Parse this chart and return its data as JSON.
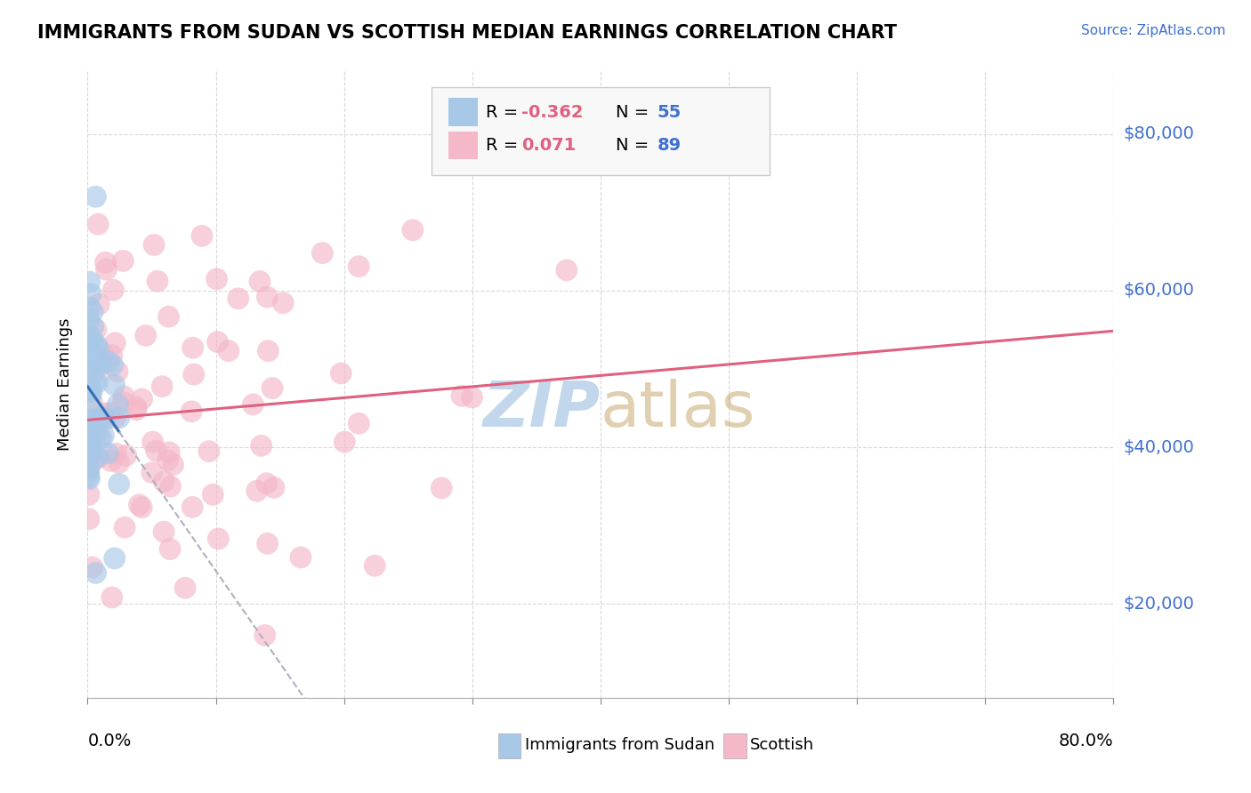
{
  "title": "IMMIGRANTS FROM SUDAN VS SCOTTISH MEDIAN EARNINGS CORRELATION CHART",
  "source": "Source: ZipAtlas.com",
  "ylabel": "Median Earnings",
  "yticks": [
    20000,
    40000,
    60000,
    80000
  ],
  "ytick_labels": [
    "$20,000",
    "$40,000",
    "$60,000",
    "$80,000"
  ],
  "legend_line1": "R = -0.362   N = 55",
  "legend_line2": "R =  0.071   N = 89",
  "color_sudan": "#a8c8e8",
  "color_scottish": "#f4b8c8",
  "color_sudan_line": "#3070b8",
  "color_scottish_line": "#e06080",
  "color_axis_text": "#4070d0",
  "color_legend_text_r": "#e06080",
  "color_legend_text_n": "#4070d0",
  "watermark_color": "#b8d0e8",
  "background_color": "#ffffff",
  "grid_color": "#d8d8d8",
  "xlim": [
    0.0,
    0.8
  ],
  "ylim": [
    8000,
    88000
  ],
  "sudan_seed": 42,
  "scottish_seed": 99
}
